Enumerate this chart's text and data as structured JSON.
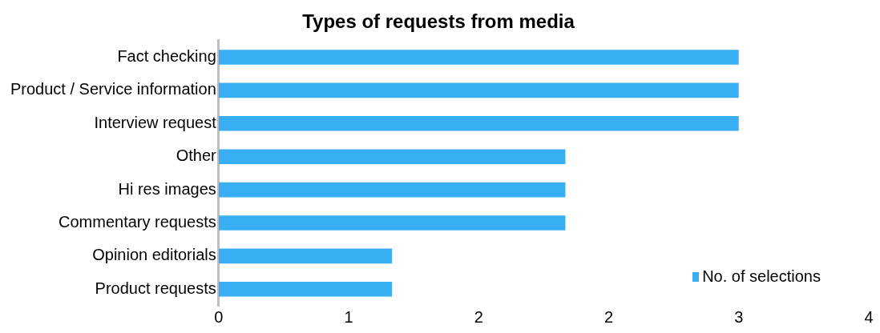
{
  "chart_data": {
    "type": "bar",
    "orientation": "horizontal",
    "title": "Types of requests from media",
    "categories": [
      "Fact checking",
      "Product / Service information",
      "Interview request",
      "Other",
      "Hi res images",
      "Commentary requests",
      "Opinion editorials",
      "Product requests"
    ],
    "series": [
      {
        "name": "No. of selections",
        "color": "#3aaef2",
        "values": [
          3,
          3,
          3,
          2,
          2,
          2,
          1,
          1
        ]
      }
    ],
    "xlim": [
      0,
      3.75
    ],
    "xticks": [
      0,
      {
        "value": 0.75,
        "label": "1"
      },
      {
        "value": 1.5,
        "label": "2"
      },
      {
        "value": 2.25,
        "label": "2"
      },
      3,
      {
        "value": 3.75,
        "label": "4"
      }
    ],
    "grid": false,
    "legend": "bottom right"
  }
}
